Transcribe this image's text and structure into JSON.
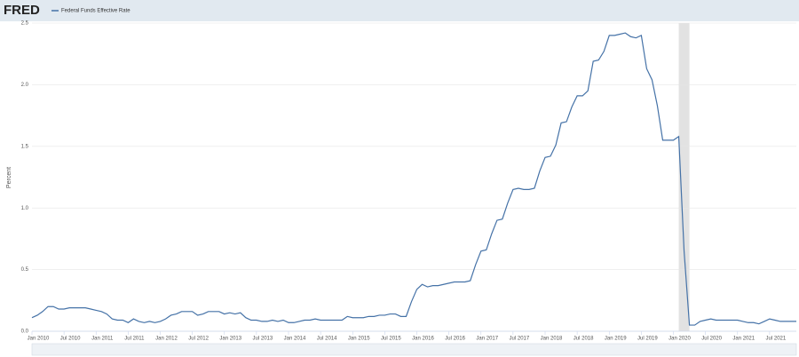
{
  "chart_data": {
    "type": "line",
    "logo": "FRED",
    "ylabel": "Percent",
    "x": [
      "2010-01",
      "2010-02",
      "2010-03",
      "2010-04",
      "2010-05",
      "2010-06",
      "2010-07",
      "2010-08",
      "2010-09",
      "2010-10",
      "2010-11",
      "2010-12",
      "2011-01",
      "2011-02",
      "2011-03",
      "2011-04",
      "2011-05",
      "2011-06",
      "2011-07",
      "2011-08",
      "2011-09",
      "2011-10",
      "2011-11",
      "2011-12",
      "2012-01",
      "2012-02",
      "2012-03",
      "2012-04",
      "2012-05",
      "2012-06",
      "2012-07",
      "2012-08",
      "2012-09",
      "2012-10",
      "2012-11",
      "2012-12",
      "2013-01",
      "2013-02",
      "2013-03",
      "2013-04",
      "2013-05",
      "2013-06",
      "2013-07",
      "2013-08",
      "2013-09",
      "2013-10",
      "2013-11",
      "2013-12",
      "2014-01",
      "2014-02",
      "2014-03",
      "2014-04",
      "2014-05",
      "2014-06",
      "2014-07",
      "2014-08",
      "2014-09",
      "2014-10",
      "2014-11",
      "2014-12",
      "2015-01",
      "2015-02",
      "2015-03",
      "2015-04",
      "2015-05",
      "2015-06",
      "2015-07",
      "2015-08",
      "2015-09",
      "2015-10",
      "2015-11",
      "2015-12",
      "2016-01",
      "2016-02",
      "2016-03",
      "2016-04",
      "2016-05",
      "2016-06",
      "2016-07",
      "2016-08",
      "2016-09",
      "2016-10",
      "2016-11",
      "2016-12",
      "2017-01",
      "2017-02",
      "2017-03",
      "2017-04",
      "2017-05",
      "2017-06",
      "2017-07",
      "2017-08",
      "2017-09",
      "2017-10",
      "2017-11",
      "2017-12",
      "2018-01",
      "2018-02",
      "2018-03",
      "2018-04",
      "2018-05",
      "2018-06",
      "2018-07",
      "2018-08",
      "2018-09",
      "2018-10",
      "2018-11",
      "2018-12",
      "2019-01",
      "2019-02",
      "2019-03",
      "2019-04",
      "2019-05",
      "2019-06",
      "2019-07",
      "2019-08",
      "2019-09",
      "2019-10",
      "2019-11",
      "2019-12",
      "2020-01",
      "2020-02",
      "2020-03",
      "2020-04",
      "2020-05",
      "2020-06",
      "2020-07",
      "2020-08",
      "2020-09",
      "2020-10",
      "2020-11",
      "2020-12",
      "2021-01",
      "2021-02",
      "2021-03",
      "2021-04",
      "2021-05",
      "2021-06",
      "2021-07",
      "2021-08",
      "2021-09",
      "2021-10",
      "2021-11",
      "2021-12"
    ],
    "series": [
      {
        "name": "Federal Funds Effective Rate",
        "color": "#4572a7",
        "values": [
          0.11,
          0.13,
          0.16,
          0.2,
          0.2,
          0.18,
          0.18,
          0.19,
          0.19,
          0.19,
          0.19,
          0.18,
          0.17,
          0.16,
          0.14,
          0.1,
          0.09,
          0.09,
          0.07,
          0.1,
          0.08,
          0.07,
          0.08,
          0.07,
          0.08,
          0.1,
          0.13,
          0.14,
          0.16,
          0.16,
          0.16,
          0.13,
          0.14,
          0.16,
          0.16,
          0.16,
          0.14,
          0.15,
          0.14,
          0.15,
          0.11,
          0.09,
          0.09,
          0.08,
          0.08,
          0.09,
          0.08,
          0.09,
          0.07,
          0.07,
          0.08,
          0.09,
          0.09,
          0.1,
          0.09,
          0.09,
          0.09,
          0.09,
          0.09,
          0.12,
          0.11,
          0.11,
          0.11,
          0.12,
          0.12,
          0.13,
          0.13,
          0.14,
          0.14,
          0.12,
          0.12,
          0.24,
          0.34,
          0.38,
          0.36,
          0.37,
          0.37,
          0.38,
          0.39,
          0.4,
          0.4,
          0.4,
          0.41,
          0.54,
          0.65,
          0.66,
          0.79,
          0.9,
          0.91,
          1.04,
          1.15,
          1.16,
          1.15,
          1.15,
          1.16,
          1.3,
          1.41,
          1.42,
          1.51,
          1.69,
          1.7,
          1.82,
          1.91,
          1.91,
          1.95,
          2.19,
          2.2,
          2.27,
          2.4,
          2.4,
          2.41,
          2.42,
          2.39,
          2.38,
          2.4,
          2.13,
          2.04,
          1.83,
          1.55,
          1.55,
          1.55,
          1.58,
          0.65,
          0.05,
          0.05,
          0.08,
          0.09,
          0.1,
          0.09,
          0.09,
          0.09,
          0.09,
          0.09,
          0.08,
          0.07,
          0.07,
          0.06,
          0.08,
          0.1,
          0.09,
          0.08,
          0.08,
          0.08,
          0.08
        ]
      }
    ],
    "recessions": [
      [
        "2020-02",
        "2020-04"
      ]
    ],
    "xlim": [
      "2010-01",
      "2021-12"
    ],
    "xticks": [
      {
        "value": "2010-01",
        "label": "Jan 2010"
      },
      {
        "value": "2010-07",
        "label": "Jul 2010"
      },
      {
        "value": "2011-01",
        "label": "Jan 2011"
      },
      {
        "value": "2011-07",
        "label": "Jul 2011"
      },
      {
        "value": "2012-01",
        "label": "Jan 2012"
      },
      {
        "value": "2012-07",
        "label": "Jul 2012"
      },
      {
        "value": "2013-01",
        "label": "Jan 2013"
      },
      {
        "value": "2013-07",
        "label": "Jul 2013"
      },
      {
        "value": "2014-01",
        "label": "Jan 2014"
      },
      {
        "value": "2014-07",
        "label": "Jul 2014"
      },
      {
        "value": "2015-01",
        "label": "Jan 2015"
      },
      {
        "value": "2015-07",
        "label": "Jul 2015"
      },
      {
        "value": "2016-01",
        "label": "Jan 2016"
      },
      {
        "value": "2016-07",
        "label": "Jul 2016"
      },
      {
        "value": "2017-01",
        "label": "Jan 2017"
      },
      {
        "value": "2017-07",
        "label": "Jul 2017"
      },
      {
        "value": "2018-01",
        "label": "Jan 2018"
      },
      {
        "value": "2018-07",
        "label": "Jul 2018"
      },
      {
        "value": "2019-01",
        "label": "Jan 2019"
      },
      {
        "value": "2019-07",
        "label": "Jul 2019"
      },
      {
        "value": "2020-01",
        "label": "Jan 2020"
      },
      {
        "value": "2020-07",
        "label": "Jul 2020"
      },
      {
        "value": "2021-01",
        "label": "Jan 2021"
      },
      {
        "value": "2021-07",
        "label": "Jul 2021"
      }
    ],
    "ylim": [
      0,
      2.5
    ],
    "yticks": [
      {
        "value": 0,
        "label": "0.0"
      },
      0.5,
      {
        "value": 1,
        "label": "1.0"
      },
      1.5,
      {
        "value": 2,
        "label": "2.0"
      },
      2.5
    ],
    "grid": true
  }
}
